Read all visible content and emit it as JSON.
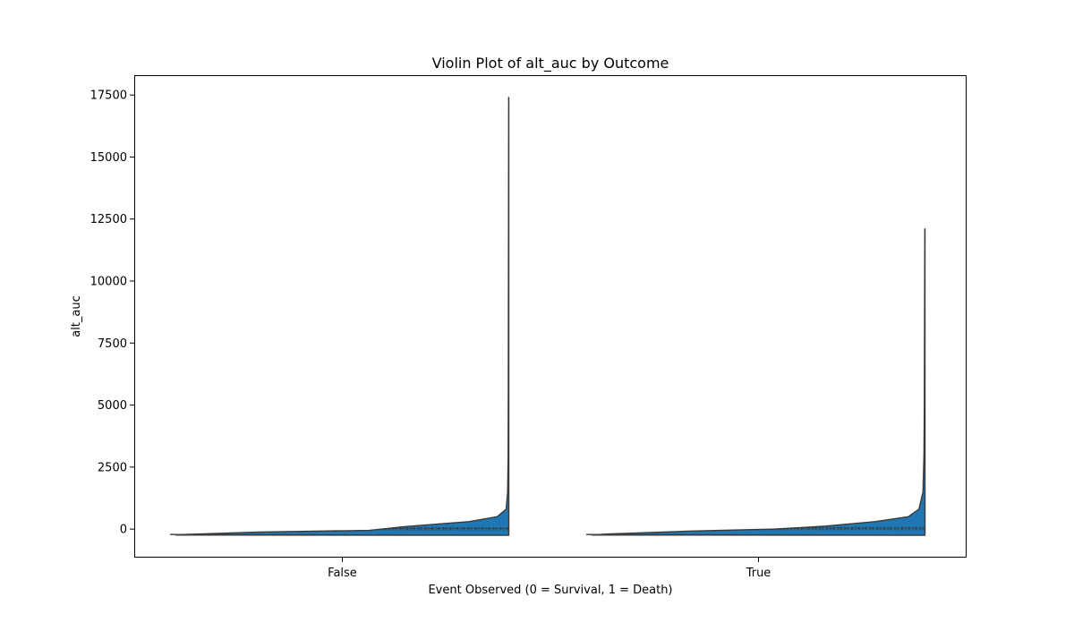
{
  "chart_data": {
    "type": "violin",
    "title": "Violin Plot of alt_auc by Outcome",
    "xlabel": "Event Observed (0 = Survival, 1 = Death)",
    "ylabel": "alt_auc",
    "categories": [
      "False",
      "True"
    ],
    "ylim": [
      -1150,
      18300
    ],
    "yticks": [
      0,
      2500,
      5000,
      7500,
      10000,
      12500,
      15000,
      17500
    ],
    "ytick_labels": [
      "0",
      "2500",
      "5000",
      "7500",
      "10000",
      "12500",
      "15000",
      "17500"
    ],
    "grid": false,
    "fill_color": "#1f77b4",
    "edge_color": "#3a3a3a",
    "violins": [
      {
        "category": "False",
        "min": -250,
        "max": 17400,
        "median": 20,
        "quartiles": [
          -30,
          60
        ],
        "profile": [
          {
            "y": -250,
            "w": 0.0
          },
          {
            "y": -240,
            "w": 1.0
          },
          {
            "y": -220,
            "w": 0.98
          },
          {
            "y": -120,
            "w": 0.75
          },
          {
            "y": -50,
            "w": 0.42
          },
          {
            "y": 100,
            "w": 0.31
          },
          {
            "y": 300,
            "w": 0.12
          },
          {
            "y": 500,
            "w": 0.035
          },
          {
            "y": 800,
            "w": 0.008
          },
          {
            "y": 1500,
            "w": 0.0035
          },
          {
            "y": 3000,
            "w": 0.002
          },
          {
            "y": 5500,
            "w": 0.0015
          },
          {
            "y": 17400,
            "w": 0.0004
          }
        ]
      },
      {
        "category": "True",
        "min": -250,
        "max": 12100,
        "median": 30,
        "quartiles": [
          -20,
          70
        ],
        "profile": [
          {
            "y": -250,
            "w": 0.0
          },
          {
            "y": -240,
            "w": 1.0
          },
          {
            "y": -200,
            "w": 0.96
          },
          {
            "y": -80,
            "w": 0.7
          },
          {
            "y": 0,
            "w": 0.45
          },
          {
            "y": 120,
            "w": 0.3
          },
          {
            "y": 300,
            "w": 0.15
          },
          {
            "y": 500,
            "w": 0.05
          },
          {
            "y": 800,
            "w": 0.018
          },
          {
            "y": 1500,
            "w": 0.006
          },
          {
            "y": 3000,
            "w": 0.003
          },
          {
            "y": 5000,
            "w": 0.002
          },
          {
            "y": 12100,
            "w": 0.0005
          }
        ]
      }
    ]
  }
}
